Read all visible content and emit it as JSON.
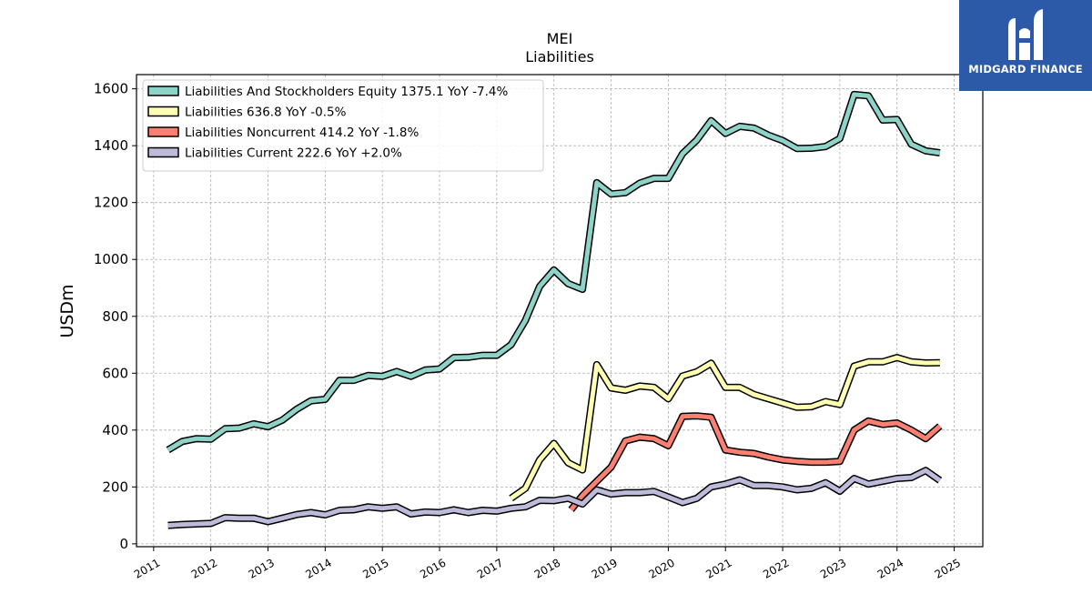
{
  "chart_data": {
    "type": "line",
    "title": "MEI",
    "subtitle": "Liabilities",
    "xlabel": "",
    "ylabel": "USDm",
    "xlim": [
      2010.7,
      2025.5
    ],
    "ylim": [
      -10,
      1650
    ],
    "yticks": [
      0,
      200,
      400,
      600,
      800,
      1000,
      1200,
      1400,
      1600
    ],
    "xticks": [
      "2011",
      "2012",
      "2013",
      "2014",
      "2015",
      "2016",
      "2017",
      "2018",
      "2019",
      "2020",
      "2021",
      "2022",
      "2023",
      "2024",
      "2025"
    ],
    "grid": true,
    "legend_position": "top-left",
    "series": [
      {
        "name": "Liabilities And Stockholders Equity",
        "legend": "Liabilities And Stockholders Equity  1375.1 YoY -7.4%",
        "color": "#8dd3c7",
        "x": [
          2011.25,
          2011.5,
          2011.75,
          2012.0,
          2012.25,
          2012.5,
          2012.75,
          2013.0,
          2013.25,
          2013.5,
          2013.75,
          2014.0,
          2014.25,
          2014.5,
          2014.75,
          2015.0,
          2015.25,
          2015.5,
          2015.75,
          2016.0,
          2016.25,
          2016.5,
          2016.75,
          2017.0,
          2017.25,
          2017.5,
          2017.75,
          2018.0,
          2018.25,
          2018.5,
          2018.75,
          2019.0,
          2019.25,
          2019.5,
          2019.75,
          2020.0,
          2020.25,
          2020.5,
          2020.75,
          2021.0,
          2021.25,
          2021.5,
          2021.75,
          2022.0,
          2022.25,
          2022.5,
          2022.75,
          2023.0,
          2023.25,
          2023.5,
          2023.75,
          2024.0,
          2024.25,
          2024.5,
          2024.75
        ],
        "y": [
          330,
          360,
          370,
          368,
          405,
          407,
          422,
          412,
          435,
          473,
          503,
          508,
          575,
          575,
          592,
          589,
          606,
          589,
          611,
          615,
          655,
          656,
          663,
          663,
          700,
          785,
          905,
          963,
          915,
          895,
          1270,
          1230,
          1235,
          1268,
          1285,
          1285,
          1372,
          1420,
          1488,
          1443,
          1468,
          1462,
          1437,
          1418,
          1390,
          1391,
          1397,
          1425,
          1580,
          1575,
          1490,
          1492,
          1405,
          1382,
          1375
        ]
      },
      {
        "name": "Liabilities",
        "legend": "Liabilities  636.8 YoY -0.5%",
        "color": "#ffffb3",
        "x": [
          2017.25,
          2017.5,
          2017.75,
          2018.0,
          2018.25,
          2018.5,
          2018.75,
          2019.0,
          2019.25,
          2019.5,
          2019.75,
          2020.0,
          2020.25,
          2020.5,
          2020.75,
          2021.0,
          2021.25,
          2021.5,
          2021.75,
          2022.0,
          2022.25,
          2022.5,
          2022.75,
          2023.0,
          2023.25,
          2023.5,
          2023.75,
          2024.0,
          2024.25,
          2024.5,
          2024.75
        ],
        "y": [
          160,
          195,
          295,
          353,
          285,
          260,
          630,
          548,
          540,
          555,
          550,
          510,
          590,
          605,
          635,
          550,
          550,
          525,
          510,
          495,
          480,
          482,
          500,
          490,
          625,
          640,
          640,
          655,
          640,
          636,
          637
        ]
      },
      {
        "name": "Liabilities Noncurrent",
        "legend": "Liabilities Noncurrent  414.2 YoY -1.8%",
        "color": "#fb8072",
        "x": [
          2018.3,
          2018.5,
          2018.75,
          2019.0,
          2019.25,
          2019.5,
          2019.75,
          2020.0,
          2020.25,
          2020.5,
          2020.75,
          2021.0,
          2021.25,
          2021.5,
          2021.75,
          2022.0,
          2022.25,
          2022.5,
          2022.75,
          2023.0,
          2023.25,
          2023.5,
          2023.75,
          2024.0,
          2024.25,
          2024.5,
          2024.75
        ],
        "y": [
          120,
          170,
          220,
          270,
          362,
          375,
          370,
          345,
          448,
          450,
          445,
          330,
          322,
          318,
          305,
          295,
          290,
          287,
          287,
          290,
          400,
          432,
          420,
          425,
          400,
          370,
          414
        ]
      },
      {
        "name": "Liabilities Current",
        "legend": "Liabilities Current  222.6 YoY +2.0%",
        "color": "#bebada",
        "x": [
          2011.25,
          2011.5,
          2011.75,
          2012.0,
          2012.25,
          2012.5,
          2012.75,
          2013.0,
          2013.25,
          2013.5,
          2013.75,
          2014.0,
          2014.25,
          2014.5,
          2014.75,
          2015.0,
          2015.25,
          2015.5,
          2015.75,
          2016.0,
          2016.25,
          2016.5,
          2016.75,
          2017.0,
          2017.25,
          2017.5,
          2017.75,
          2018.0,
          2018.25,
          2018.5,
          2018.75,
          2019.0,
          2019.25,
          2019.5,
          2019.75,
          2020.0,
          2020.25,
          2020.5,
          2020.75,
          2021.0,
          2021.25,
          2021.5,
          2021.75,
          2022.0,
          2022.25,
          2022.5,
          2022.75,
          2023.0,
          2023.25,
          2023.5,
          2023.75,
          2024.0,
          2024.25,
          2024.5,
          2024.75
        ],
        "y": [
          65,
          68,
          70,
          72,
          92,
          90,
          90,
          78,
          90,
          103,
          110,
          102,
          118,
          120,
          130,
          125,
          130,
          105,
          112,
          110,
          120,
          110,
          118,
          115,
          125,
          130,
          153,
          152,
          160,
          140,
          190,
          175,
          180,
          180,
          184,
          165,
          145,
          160,
          200,
          210,
          225,
          205,
          205,
          200,
          190,
          195,
          215,
          185,
          230,
          210,
          220,
          230,
          233,
          258,
          223
        ]
      }
    ]
  },
  "logo": {
    "text": "MIDGARD FINANCE"
  }
}
